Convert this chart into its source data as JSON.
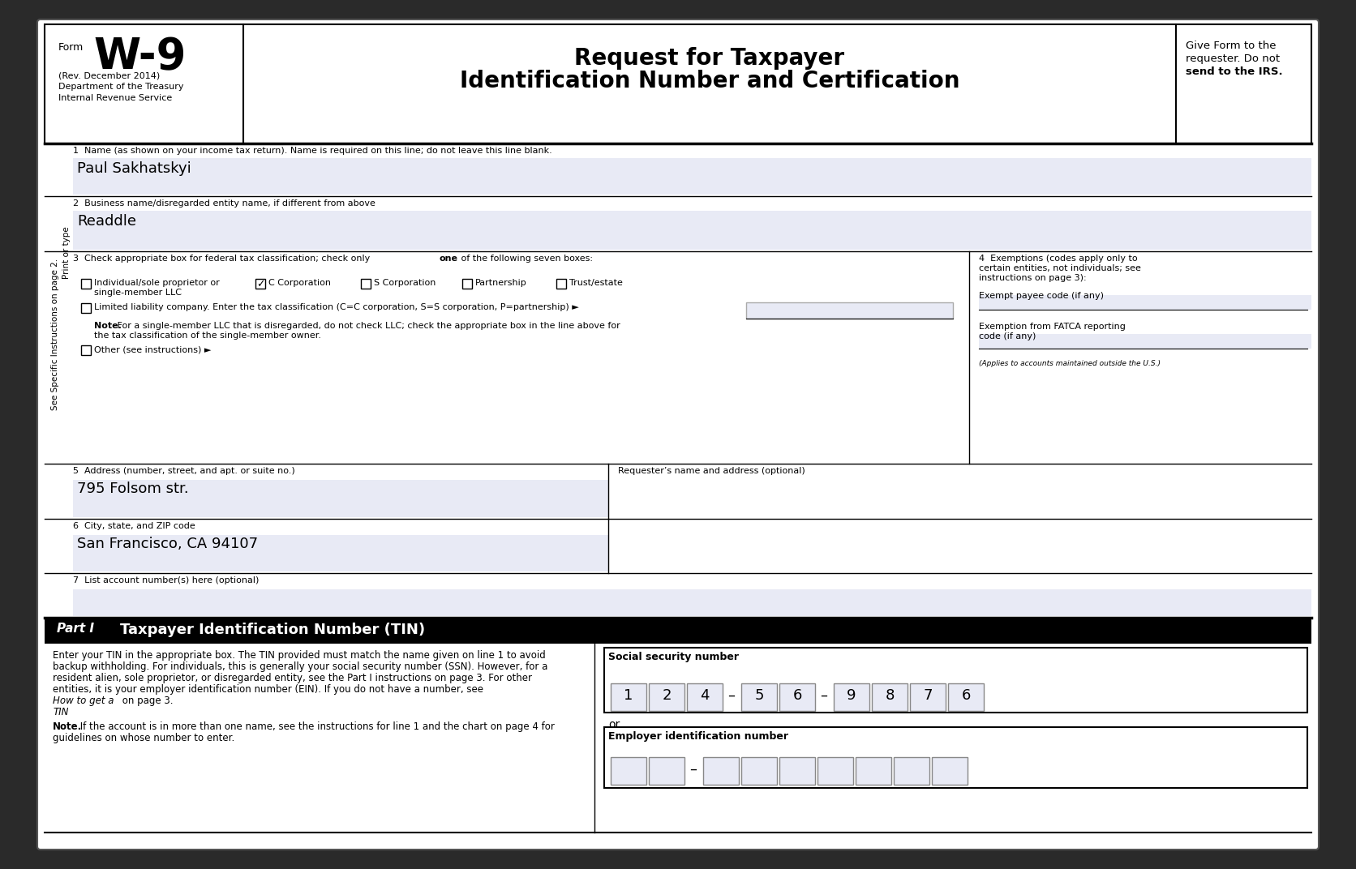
{
  "form_title_line1": "Request for Taxpayer",
  "form_title_line2": "Identification Number and Certification",
  "form_name": "W-9",
  "form_rev": "(Rev. December 2014)",
  "form_dept": "Department of the Treasury",
  "form_irs": "Internal Revenue Service",
  "give_line1": "Give Form to the",
  "give_line2": "requester. Do not",
  "give_line3": "send to the IRS.",
  "field1_label": "1  Name (as shown on your income tax return). Name is required on this line; do not leave this line blank.",
  "field1_value": "Paul Sakhatskyi",
  "field2_label": "2  Business name/disregarded entity name, if different from above",
  "field2_value": "Readdle",
  "field3_prefix": "3  Check appropriate box for federal tax classification; check only ",
  "field3_bold": "one",
  "field3_suffix": " of the following seven boxes:",
  "check_individual_line1": "Individual/sole proprietor or",
  "check_individual_line2": "single-member LLC",
  "check_c_corp": "C Corporation",
  "check_s_corp": "S Corporation",
  "check_partnership": "Partnership",
  "check_trust": "Trust/estate",
  "check_llc": "Limited liability company. Enter the tax classification (C=C corporation, S=S corporation, P=partnership) ►",
  "note_bold": "Note.",
  "note_text": " For a single-member LLC that is disregarded, do not check LLC; check the appropriate box in the line above for",
  "note_text2": "the tax classification of the single-member owner.",
  "check_other": "Other (see instructions) ►",
  "field4_line1": "4  Exemptions (codes apply only to",
  "field4_line2": "certain entities, not individuals; see",
  "field4_line3": "instructions on page 3):",
  "exempt_payee_label": "Exempt payee code (if any)",
  "fatca_line1": "Exemption from FATCA reporting",
  "fatca_line2": "code (if any)",
  "fatca_note": "(Applies to accounts maintained outside the U.S.)",
  "field5_label": "5  Address (number, street, and apt. or suite no.)",
  "field5_value": "795 Folsom str.",
  "requester_label": "Requester’s name and address (optional)",
  "field6_label": "6  City, state, and ZIP code",
  "field6_value": "San Francisco, CA 94107",
  "field7_label": "7  List account number(s) here (optional)",
  "part1_label": "Part I",
  "part1_title": "Taxpayer Identification Number (TIN)",
  "part1_para": "Enter your TIN in the appropriate box. The TIN provided must match the name given on line 1 to avoid backup withholding. For individuals, this is generally your social security number (SSN). However, for a resident alien, sole proprietor, or disregarded entity, see the Part I instructions on page 3. For other entities, it is your employer identification number (EIN). If you do not have a number, see ",
  "part1_italic": "How to get a TIN",
  "part1_end": " on page 3.",
  "note2_bold": "Note.",
  "note2_text": " If the account is in more than one name, see the instructions for line 1 and the chart on page 4 for guidelines on whose number to enter.",
  "ssn_label": "Social security number",
  "ssn_digits": [
    "1",
    "2",
    "4",
    "-",
    "5",
    "6",
    "-",
    "9",
    "8",
    "7",
    "6"
  ],
  "ein_label": "Employer identification number",
  "sidebar_bottom": "See Specific Instructions on page 2.",
  "sidebar_top": "Print or type",
  "field_fill": "#e8eaf5",
  "outer_bg": "#2a2a2a"
}
